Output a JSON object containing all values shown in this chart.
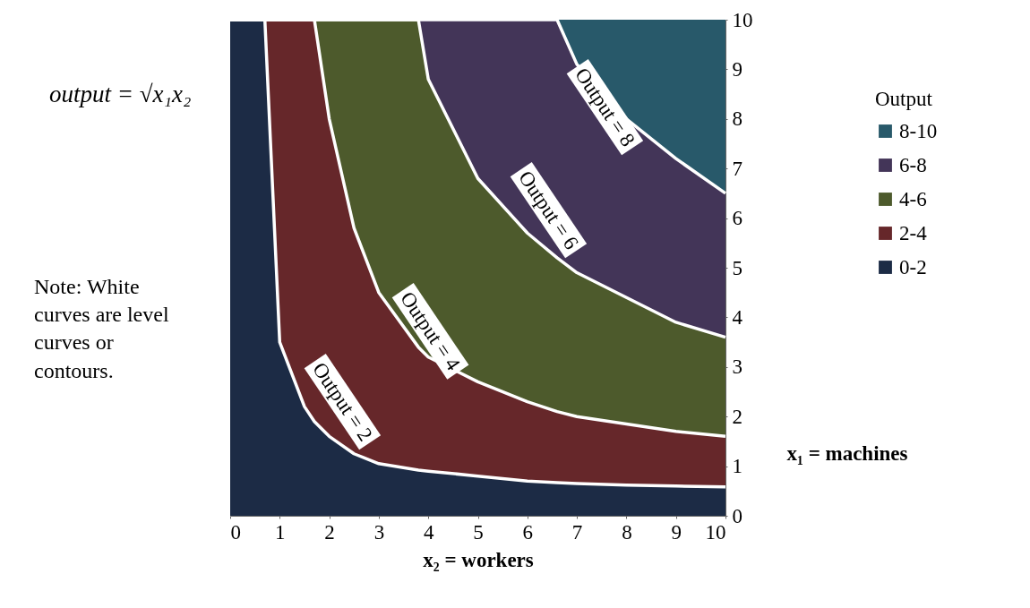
{
  "chart_data": {
    "type": "area",
    "stacked": true,
    "xlabel": "x₂ = workers",
    "ylabel": "x₁ = machines",
    "legend_title": "Output",
    "legend": "right",
    "grid": false,
    "xlim": [
      0,
      10
    ],
    "ylim": [
      0,
      10
    ],
    "xticks": [
      0,
      1,
      2,
      3,
      4,
      5,
      6,
      7,
      8,
      9,
      10
    ],
    "yticks": [
      0,
      1,
      2,
      3,
      4,
      5,
      6,
      7,
      8,
      9,
      10
    ],
    "x": [
      0,
      0.5,
      0.7,
      1,
      1.5,
      1.7,
      2,
      2.5,
      3,
      3.8,
      4,
      5,
      6,
      6.6,
      7,
      8,
      9,
      10
    ],
    "series": [
      {
        "name": "0-2",
        "color": "#1c2b45",
        "values": [
          10,
          10,
          10,
          3.5,
          2.2,
          1.9,
          1.6,
          1.25,
          1.05,
          0.92,
          0.9,
          0.8,
          0.7,
          0.67,
          0.65,
          0.62,
          0.6,
          0.58
        ]
      },
      {
        "name": "2-4",
        "color": "#66272a",
        "values": [
          0,
          0,
          0,
          6.5,
          7.8,
          8.1,
          6.4,
          4.55,
          3.45,
          2.48,
          2.3,
          1.9,
          1.6,
          1.43,
          1.35,
          1.23,
          1.1,
          1.02
        ]
      },
      {
        "name": "4-6",
        "color": "#4d5a2c",
        "values": [
          0,
          0,
          0,
          0,
          0,
          0,
          2,
          4.2,
          5.5,
          6.6,
          5.6,
          4.1,
          3.4,
          3.1,
          2.9,
          2.55,
          2.2,
          2.0
        ]
      },
      {
        "name": "6-8",
        "color": "#433558",
        "values": [
          0,
          0,
          0,
          0,
          0,
          0,
          0,
          0,
          0,
          0,
          1.2,
          3.2,
          4.3,
          4.8,
          4.2,
          3.6,
          3.3,
          2.9
        ]
      },
      {
        "name": "8-10",
        "color": "#28596a",
        "values": [
          0,
          0,
          0,
          0,
          0,
          0,
          0,
          0,
          0,
          0,
          0,
          0,
          0,
          0,
          0.9,
          2.0,
          2.8,
          3.5
        ]
      }
    ],
    "annotations": [
      "Output = 2",
      "Output = 4",
      "Output = 6",
      "Output = 8",
      "output = √x₁x₂",
      "Note:  White curves are level curves or contours."
    ]
  }
}
